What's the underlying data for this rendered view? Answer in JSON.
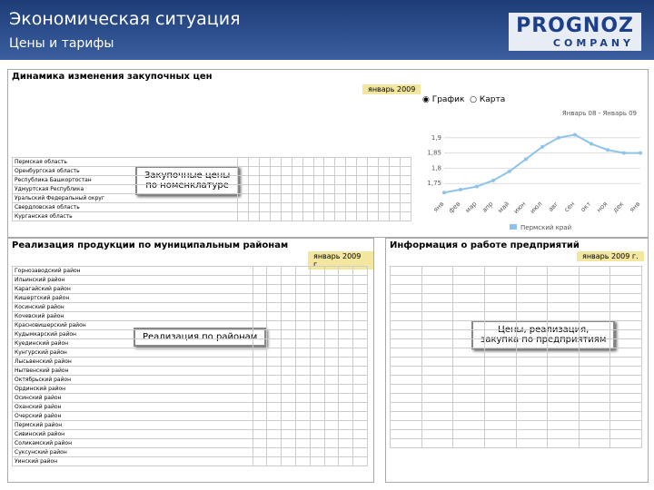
{
  "header": {
    "title": "Экономическая ситуация",
    "subtitle": "Цены и тарифы",
    "logo_top": "PROGNOZ",
    "logo_bottom": "COMPANY"
  },
  "panels": [
    {
      "title": "Динамика изменения закупочных цен",
      "date": "январь 2009",
      "button": [
        "Закупочные цены",
        "по номенклатуре"
      ],
      "view_options": [
        "График",
        "Карта"
      ],
      "rows": [
        "Пермская область",
        "Оренбургская область",
        "Республика Башкортостан",
        "Удмуртская Республика",
        "Уральский Федеральный округ",
        "Свердловская область",
        "Курганская область"
      ]
    },
    {
      "title": "Реализация продукции по муниципальным районам",
      "date": "январь 2009 г.",
      "button": [
        "Реализация по районам"
      ],
      "rows": [
        "Горнозаводский район",
        "Ильинский район",
        "Карагайский район",
        "Кишертский район",
        "Косинский район",
        "Кочевский район",
        "Красновишерский район",
        "Кудымкарский район",
        "Куединский район",
        "Кунгурский район",
        "Лысьвенский район",
        "Нытвенский район",
        "Октябрьский район",
        "Ординский район",
        "Осинский район",
        "Оханский район",
        "Очерский район",
        "Пермский район",
        "Сивинский район",
        "Соликамский район",
        "Суксунский район",
        "Уинский район"
      ]
    },
    {
      "title": "Информация о работе предприятий",
      "date": "январь 2009 г.",
      "button": [
        "Цены, реализация,",
        "закупка по предприятиям"
      ]
    }
  ],
  "chart_data": {
    "type": "line",
    "subtitle": "Январь 08 - Январь 09",
    "categories": [
      "янв",
      "фев",
      "мар",
      "апр",
      "май",
      "июн",
      "июл",
      "авг",
      "сен",
      "окт",
      "ноя",
      "дек",
      "янв"
    ],
    "series": [
      {
        "name": "Пермский край",
        "color": "#8ec3ea",
        "values": [
          1.72,
          1.73,
          1.74,
          1.76,
          1.79,
          1.83,
          1.87,
          1.9,
          1.91,
          1.88,
          1.86,
          1.85,
          1.85
        ]
      }
    ],
    "ylim": [
      1.7,
      1.95
    ],
    "yticks": [
      {
        "value": 1.75,
        "label": "1,75"
      },
      {
        "value": 1.8,
        "label": "1,8"
      },
      {
        "value": 1.85,
        "label": "1,85"
      },
      {
        "value": 1.9,
        "label": "1,9"
      }
    ],
    "grid": true
  }
}
